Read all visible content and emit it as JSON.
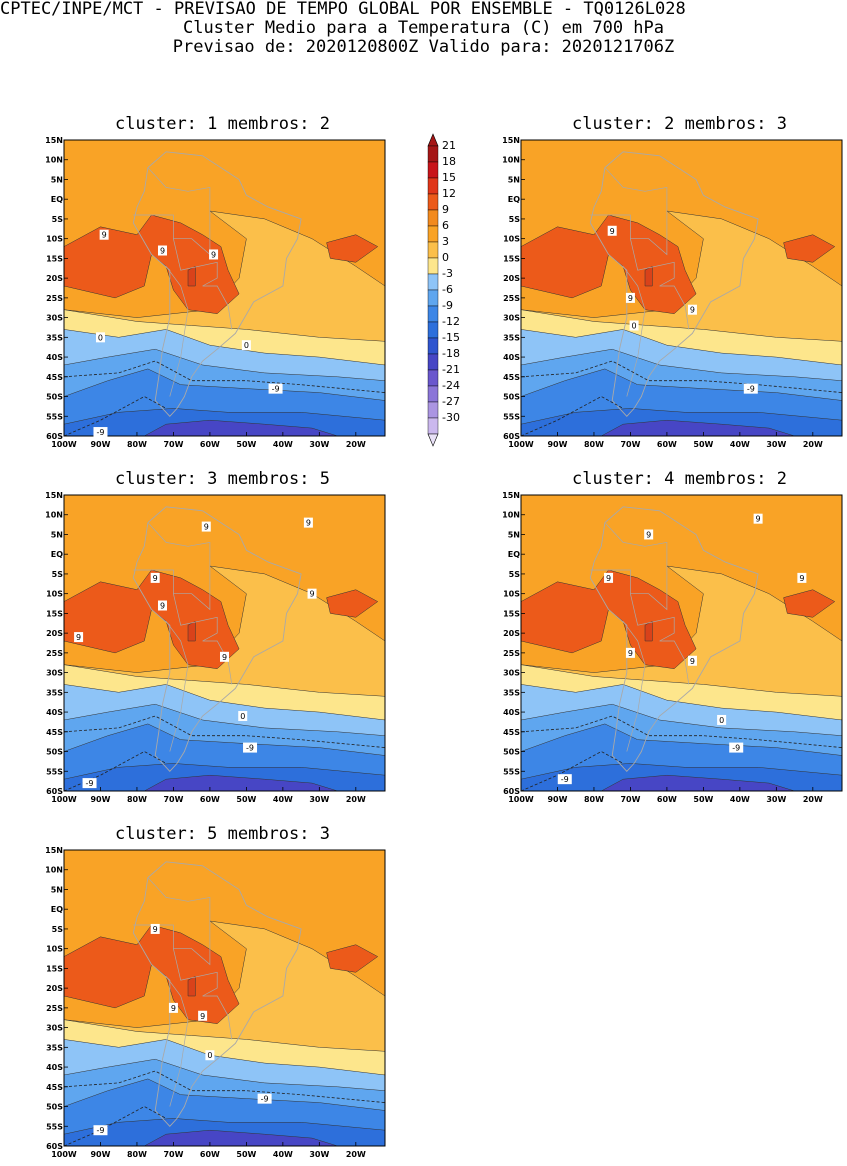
{
  "header": {
    "line1": "CPTEC/INPE/MCT - PREVISAO DE TEMPO GLOBAL POR ENSEMBLE - TQ0126L028",
    "line2": "Cluster Medio para a Temperatura (C) em 700 hPa",
    "line3": "Previsao de: 2020120800Z   Valido para: 2020121706Z"
  },
  "colorbar": {
    "ticks": [
      "21",
      "18",
      "15",
      "12",
      "9",
      "6",
      "3",
      "0",
      "-3",
      "-6",
      "-9",
      "-12",
      "-15",
      "-18",
      "-21",
      "-24",
      "-27",
      "-30"
    ],
    "colors": [
      "#a51616",
      "#c8141a",
      "#e0361a",
      "#ec5a1a",
      "#f28a1e",
      "#f9a326",
      "#fbbf4a",
      "#fde68c",
      "#8ec4f7",
      "#5fa6ef",
      "#3d86e6",
      "#2d6fdb",
      "#2f55cf",
      "#4746c5",
      "#6a57cd",
      "#8b75d8",
      "#ab95e2",
      "#cbb8ee"
    ],
    "top_color": "#a51616",
    "bottom_color": "#e9e1f7"
  },
  "axes": {
    "lat_labels": [
      "15N",
      "10N",
      "5N",
      "EQ",
      "5S",
      "10S",
      "15S",
      "20S",
      "25S",
      "30S",
      "35S",
      "40S",
      "45S",
      "50S",
      "55S",
      "60S"
    ],
    "lon_labels": [
      "100W",
      "90W",
      "80W",
      "70W",
      "60W",
      "50W",
      "40W",
      "30W",
      "20W"
    ]
  },
  "panels": [
    {
      "title": "cluster: 1   membros: 2",
      "labels": [
        {
          "text": "9",
          "lon": -89,
          "lat": -9
        },
        {
          "text": "9",
          "lon": -73,
          "lat": -13
        },
        {
          "text": "9",
          "lon": -59,
          "lat": -14
        },
        {
          "text": "0",
          "lon": -90,
          "lat": -35
        },
        {
          "text": "0",
          "lon": -50,
          "lat": -37
        },
        {
          "text": "-9",
          "lon": -42,
          "lat": -48
        },
        {
          "text": "-9",
          "lon": -90,
          "lat": -59
        }
      ]
    },
    {
      "title": "cluster: 2   membros: 3",
      "labels": [
        {
          "text": "9",
          "lon": -75,
          "lat": -8
        },
        {
          "text": "9",
          "lon": -70,
          "lat": -25
        },
        {
          "text": "9",
          "lon": -53,
          "lat": -28
        },
        {
          "text": "0",
          "lon": -69,
          "lat": -32
        },
        {
          "text": "-9",
          "lon": -37,
          "lat": -48
        }
      ]
    },
    {
      "title": "cluster: 3   membros: 5",
      "labels": [
        {
          "text": "9",
          "lon": -61,
          "lat": 7
        },
        {
          "text": "9",
          "lon": -33,
          "lat": 8
        },
        {
          "text": "9",
          "lon": -75,
          "lat": -6
        },
        {
          "text": "9",
          "lon": -73,
          "lat": -13
        },
        {
          "text": "9",
          "lon": -32,
          "lat": -10
        },
        {
          "text": "9",
          "lon": -96,
          "lat": -21
        },
        {
          "text": "9",
          "lon": -56,
          "lat": -26
        },
        {
          "text": "0",
          "lon": -51,
          "lat": -41
        },
        {
          "text": "-9",
          "lon": -49,
          "lat": -49
        },
        {
          "text": "-9",
          "lon": -93,
          "lat": -58
        }
      ]
    },
    {
      "title": "cluster: 4   membros: 2",
      "labels": [
        {
          "text": "9",
          "lon": -35,
          "lat": 9
        },
        {
          "text": "9",
          "lon": -65,
          "lat": 5
        },
        {
          "text": "9",
          "lon": -76,
          "lat": -6
        },
        {
          "text": "9",
          "lon": -23,
          "lat": -6
        },
        {
          "text": "9",
          "lon": -70,
          "lat": -25
        },
        {
          "text": "9",
          "lon": -53,
          "lat": -27
        },
        {
          "text": "0",
          "lon": -45,
          "lat": -42
        },
        {
          "text": "-9",
          "lon": -41,
          "lat": -49
        },
        {
          "text": "-9",
          "lon": -88,
          "lat": -57
        }
      ]
    },
    {
      "title": "cluster: 5   membros: 3",
      "labels": [
        {
          "text": "9",
          "lon": -75,
          "lat": -5
        },
        {
          "text": "9",
          "lon": -70,
          "lat": -25
        },
        {
          "text": "9",
          "lon": -62,
          "lat": -27
        },
        {
          "text": "0",
          "lon": -60,
          "lat": -37
        },
        {
          "text": "-9",
          "lon": -45,
          "lat": -48
        },
        {
          "text": "-9",
          "lon": -90,
          "lat": -56
        }
      ]
    }
  ]
}
